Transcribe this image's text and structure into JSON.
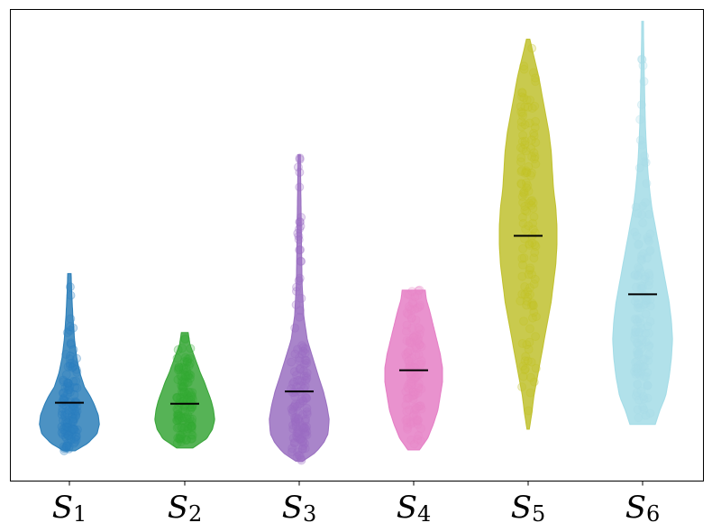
{
  "chart_data": {
    "type": "violin",
    "categories": [
      "S",
      "S",
      "S",
      "S",
      "S",
      "S"
    ],
    "category_subscripts": [
      "1",
      "2",
      "3",
      "4",
      "5",
      "6"
    ],
    "title": "",
    "xlabel": "",
    "ylabel": "",
    "y_ticks_shown": false,
    "grid": false,
    "ylim": [
      0,
      100
    ],
    "series": [
      {
        "median": 16.6,
        "min": 6.4,
        "max": 44.0,
        "colors": {
          "fill": "#1f77b4",
          "point": "#2a7fc0"
        },
        "profile": [
          [
            6.4,
            0.1
          ],
          [
            8,
            0.32
          ],
          [
            10,
            0.48
          ],
          [
            12,
            0.52
          ],
          [
            14,
            0.5
          ],
          [
            16,
            0.44
          ],
          [
            18,
            0.36
          ],
          [
            20,
            0.26
          ],
          [
            23,
            0.18
          ],
          [
            26,
            0.13
          ],
          [
            30,
            0.09
          ],
          [
            35,
            0.06
          ],
          [
            40,
            0.04
          ],
          [
            44,
            0.03
          ]
        ]
      },
      {
        "median": 16.4,
        "min": 7.0,
        "max": 31.5,
        "colors": {
          "fill": "#2ca02c",
          "point": "#33aa33"
        },
        "profile": [
          [
            7,
            0.14
          ],
          [
            9,
            0.38
          ],
          [
            11,
            0.48
          ],
          [
            13,
            0.52
          ],
          [
            15,
            0.5
          ],
          [
            17,
            0.46
          ],
          [
            19,
            0.4
          ],
          [
            21,
            0.34
          ],
          [
            23,
            0.27
          ],
          [
            25,
            0.21
          ],
          [
            27,
            0.15
          ],
          [
            29,
            0.09
          ],
          [
            31.5,
            0.06
          ]
        ]
      },
      {
        "median": 19.0,
        "min": 4.2,
        "max": 69.2,
        "colors": {
          "fill": "#9467bd",
          "point": "#9a6cc4"
        },
        "profile": [
          [
            4.2,
            0.06
          ],
          [
            6,
            0.28
          ],
          [
            8,
            0.42
          ],
          [
            10,
            0.5
          ],
          [
            13,
            0.52
          ],
          [
            16,
            0.48
          ],
          [
            19,
            0.42
          ],
          [
            22,
            0.34
          ],
          [
            26,
            0.24
          ],
          [
            30,
            0.14
          ],
          [
            35,
            0.08
          ],
          [
            42,
            0.05
          ],
          [
            50,
            0.04
          ],
          [
            60,
            0.03
          ],
          [
            69.2,
            0.02
          ]
        ]
      },
      {
        "median": 23.5,
        "min": 6.6,
        "max": 40.5,
        "colors": {
          "fill": "#e377c2",
          "point": "#e886c9"
        },
        "profile": [
          [
            6.6,
            0.1
          ],
          [
            9,
            0.24
          ],
          [
            12,
            0.34
          ],
          [
            15,
            0.42
          ],
          [
            18,
            0.46
          ],
          [
            21,
            0.5
          ],
          [
            24,
            0.5
          ],
          [
            27,
            0.46
          ],
          [
            30,
            0.4
          ],
          [
            33,
            0.34
          ],
          [
            36,
            0.28
          ],
          [
            38.5,
            0.22
          ],
          [
            40.5,
            0.2
          ]
        ]
      },
      {
        "median": 52.0,
        "min": 11.0,
        "max": 93.7,
        "colors": {
          "fill": "#bcbd22",
          "point": "#c2c326"
        },
        "profile": [
          [
            11,
            0.02
          ],
          [
            14,
            0.06
          ],
          [
            18,
            0.1
          ],
          [
            22,
            0.16
          ],
          [
            26,
            0.22
          ],
          [
            30,
            0.28
          ],
          [
            34,
            0.34
          ],
          [
            38,
            0.4
          ],
          [
            42,
            0.44
          ],
          [
            46,
            0.48
          ],
          [
            50,
            0.5
          ],
          [
            54,
            0.5
          ],
          [
            58,
            0.48
          ],
          [
            62,
            0.44
          ],
          [
            66,
            0.42
          ],
          [
            70,
            0.4
          ],
          [
            74,
            0.36
          ],
          [
            78,
            0.3
          ],
          [
            82,
            0.24
          ],
          [
            86,
            0.18
          ],
          [
            90,
            0.1
          ],
          [
            93.7,
            0.03
          ]
        ]
      },
      {
        "median": 39.6,
        "min": 12.0,
        "max": 97.5,
        "colors": {
          "fill": "#9edae5",
          "point": "#a8dde8"
        },
        "profile": [
          [
            12,
            0.22
          ],
          [
            15,
            0.3
          ],
          [
            18,
            0.4
          ],
          [
            22,
            0.46
          ],
          [
            26,
            0.5
          ],
          [
            30,
            0.52
          ],
          [
            34,
            0.5
          ],
          [
            38,
            0.46
          ],
          [
            42,
            0.4
          ],
          [
            46,
            0.34
          ],
          [
            50,
            0.28
          ],
          [
            54,
            0.22
          ],
          [
            58,
            0.16
          ],
          [
            62,
            0.12
          ],
          [
            66,
            0.09
          ],
          [
            70,
            0.07
          ],
          [
            75,
            0.05
          ],
          [
            80,
            0.04
          ],
          [
            86,
            0.03
          ],
          [
            92,
            0.02
          ],
          [
            97.5,
            0.015
          ]
        ]
      }
    ]
  }
}
